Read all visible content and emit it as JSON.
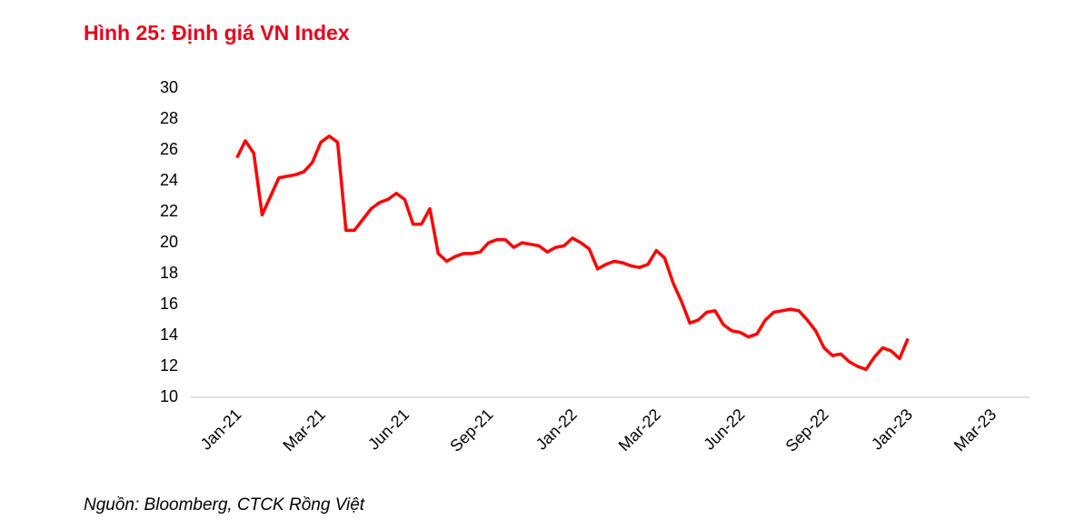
{
  "chart_data": {
    "type": "line",
    "title": "Hình 25: Định giá VN Index",
    "source": "Nguồn: Bloomberg, CTCK Rồng Việt",
    "categories": [
      null,
      null,
      null,
      null,
      null,
      "Jan-21",
      null,
      null,
      null,
      null,
      null,
      null,
      null,
      null,
      null,
      "Mar-21",
      null,
      null,
      null,
      null,
      null,
      null,
      null,
      null,
      null,
      "Jun-21",
      null,
      null,
      null,
      null,
      null,
      null,
      null,
      null,
      null,
      "Sep-21",
      null,
      null,
      null,
      null,
      null,
      null,
      null,
      null,
      null,
      "Jan-22",
      null,
      null,
      null,
      null,
      null,
      null,
      null,
      null,
      null,
      "Mar-22",
      null,
      null,
      null,
      null,
      null,
      null,
      null,
      null,
      null,
      "Jun-22",
      null,
      null,
      null,
      null,
      null,
      null,
      null,
      null,
      null,
      "Sep-22",
      null,
      null,
      null,
      null,
      null,
      null,
      null,
      null,
      null,
      "Jan-23",
      null,
      null,
      null,
      null,
      null,
      null,
      null,
      null,
      null,
      "Mar-23",
      null,
      null,
      null,
      null
    ],
    "series": [
      {
        "name": "VN Index",
        "color": "#ff0000",
        "values": [
          null,
          null,
          null,
          null,
          null,
          25.5,
          26.6,
          25.8,
          21.8,
          23.0,
          24.2,
          24.3,
          24.4,
          24.6,
          25.2,
          26.5,
          26.9,
          26.5,
          20.8,
          20.8,
          21.5,
          22.2,
          22.6,
          22.8,
          23.2,
          22.8,
          21.2,
          21.2,
          22.2,
          19.3,
          18.8,
          19.1,
          19.3,
          19.3,
          19.4,
          20.0,
          20.2,
          20.2,
          19.7,
          20.0,
          19.9,
          19.8,
          19.4,
          19.7,
          19.8,
          20.3,
          20.0,
          19.6,
          18.3,
          18.6,
          18.8,
          18.7,
          18.5,
          18.4,
          18.6,
          19.5,
          19.0,
          17.4,
          16.2,
          14.8,
          15.0,
          15.5,
          15.6,
          14.7,
          14.3,
          14.2,
          13.9,
          14.1,
          15.0,
          15.5,
          15.6,
          15.7,
          15.6,
          15.0,
          14.3,
          13.2,
          12.7,
          12.8,
          12.3,
          12.0,
          11.8,
          12.6,
          13.2,
          13.0,
          12.5,
          13.8,
          null,
          null,
          null,
          null,
          null,
          null,
          null,
          null,
          null,
          null,
          null,
          null,
          null,
          null
        ]
      }
    ],
    "ylim": [
      10,
      30
    ],
    "yticks": [
      10,
      12,
      14,
      16,
      18,
      20,
      22,
      24,
      26,
      28,
      30
    ],
    "grid": false
  }
}
